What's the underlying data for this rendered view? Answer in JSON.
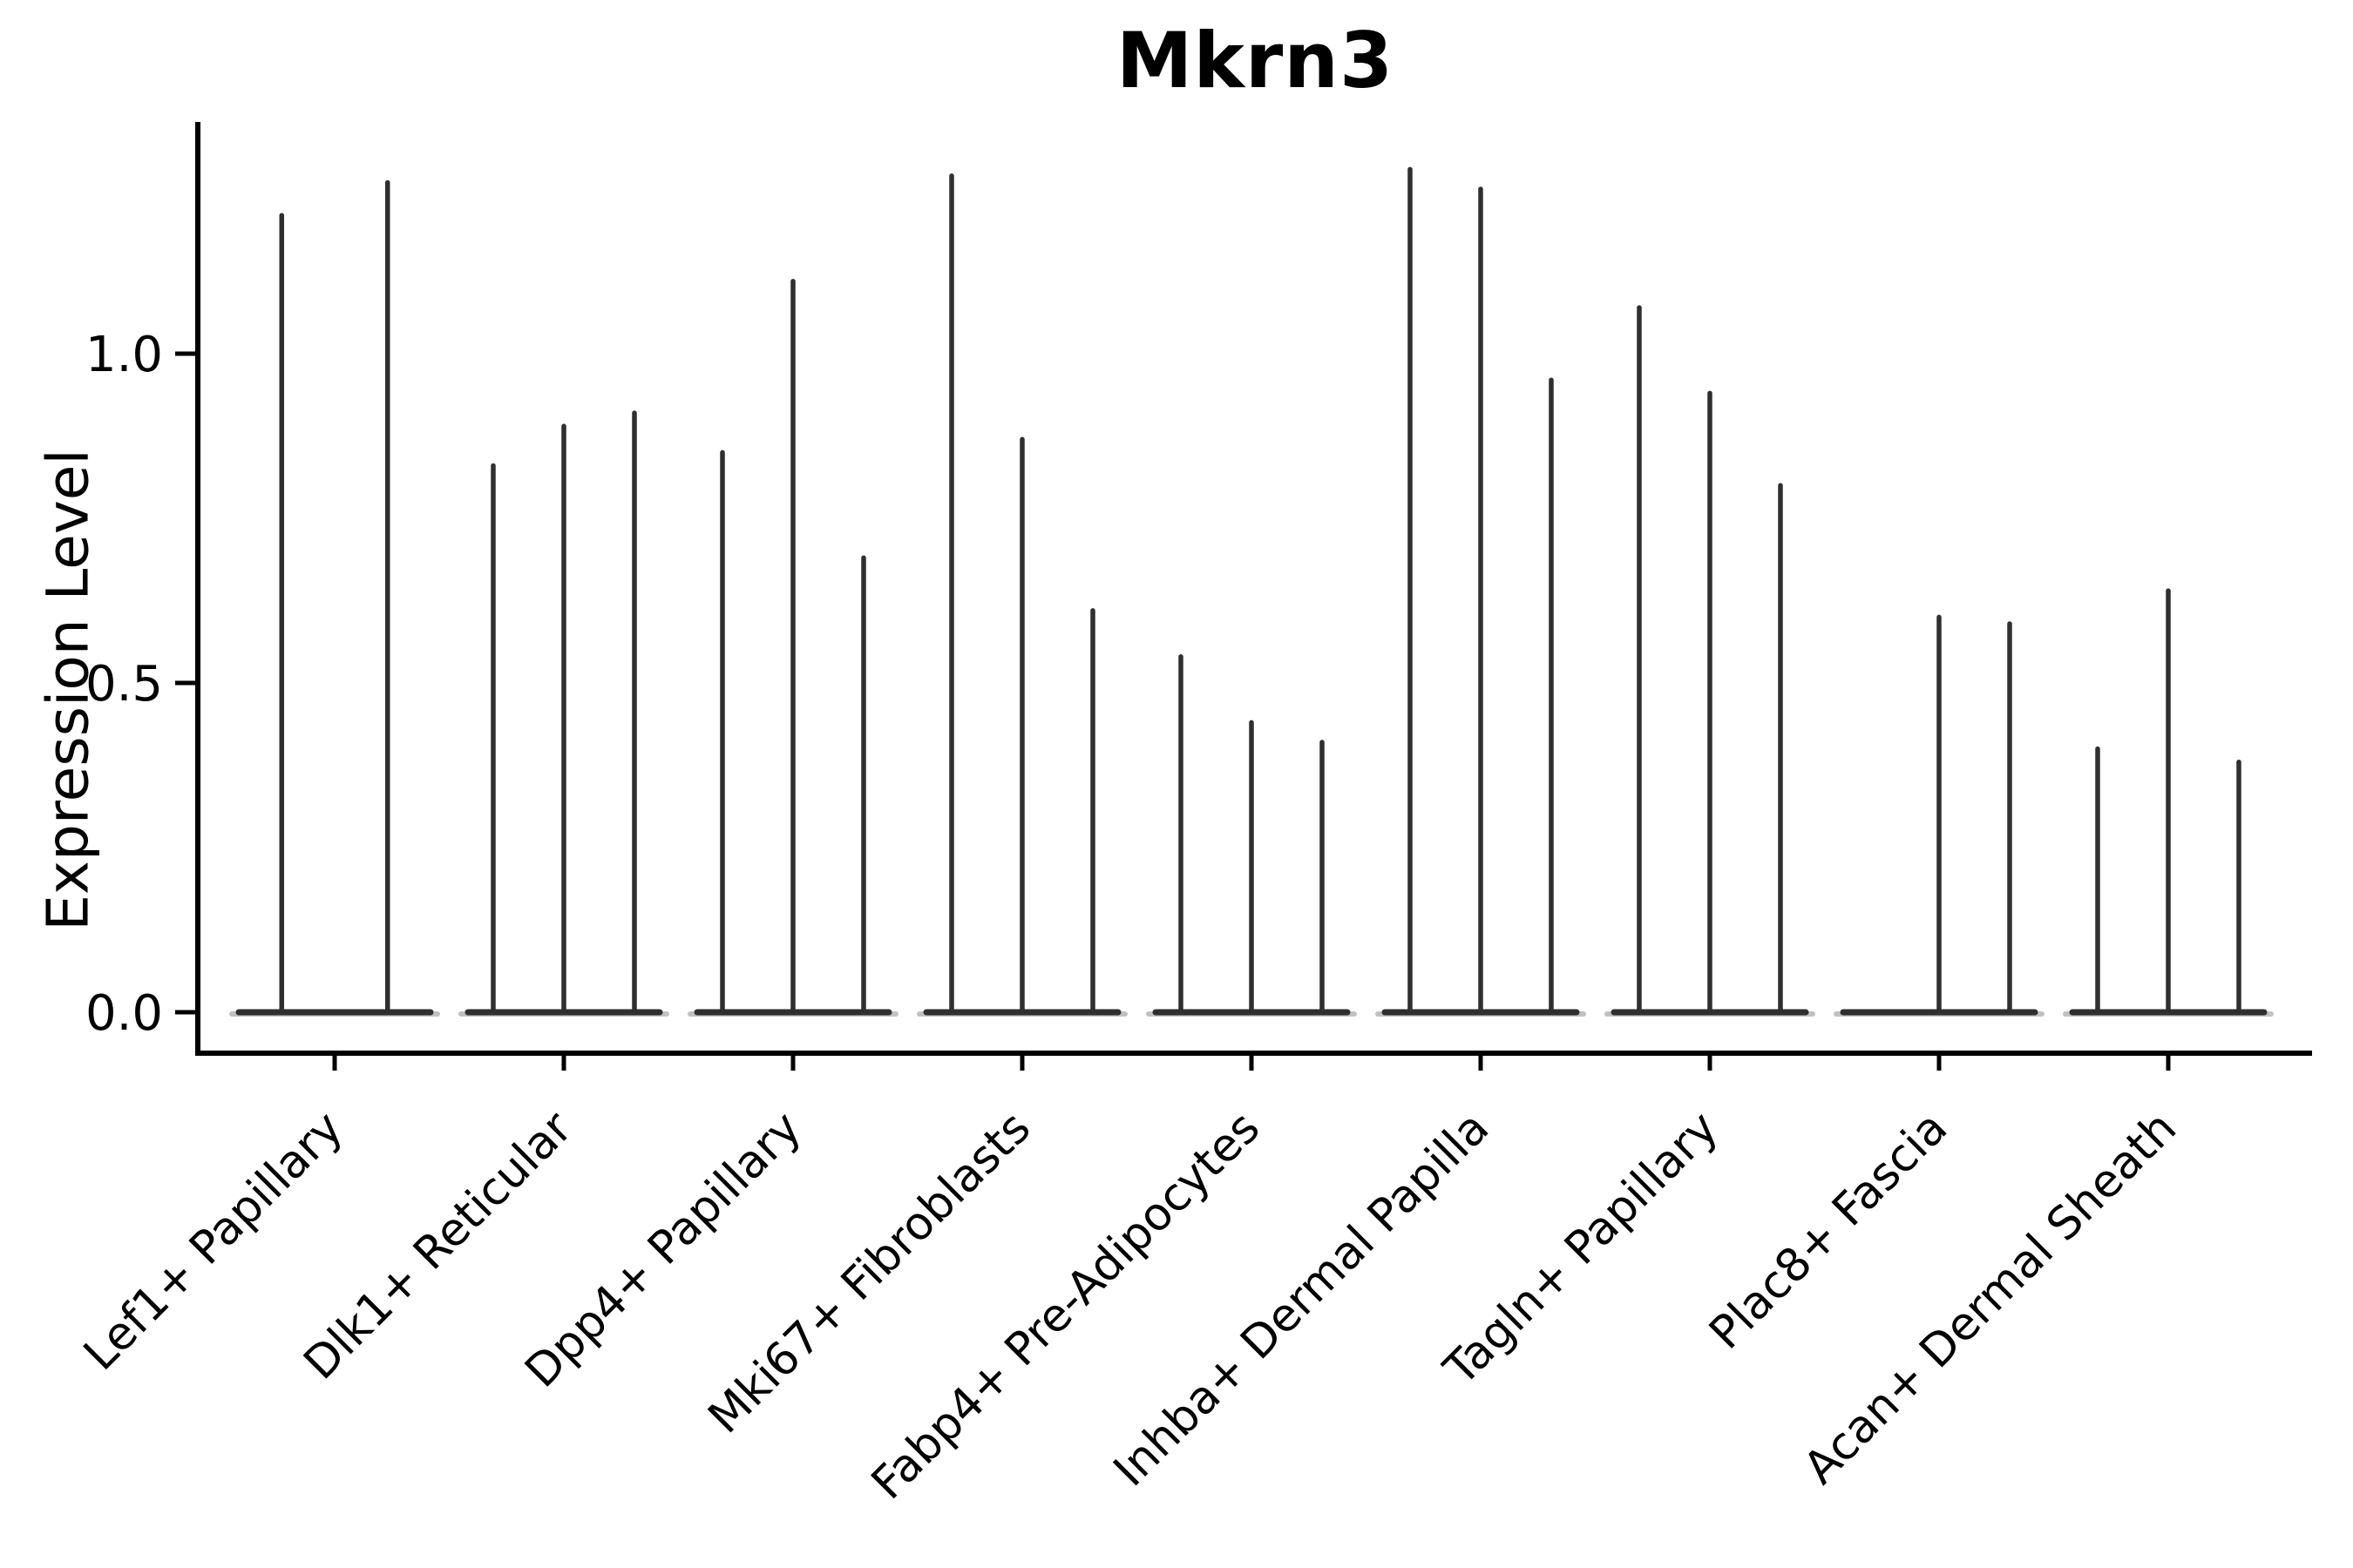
{
  "chart_data": {
    "type": "violin",
    "title": "Mkrn3",
    "ylabel": "Expression Level",
    "xlabel": "",
    "grid": false,
    "legend": "none",
    "background_color": "#ffffff",
    "violin_color": "#2f2f2f",
    "violin_end_fade_color": "#909090",
    "axis_color": "#000000",
    "ylim": [
      -0.06,
      1.35
    ],
    "ytick_labels": [
      "0.0",
      "0.5",
      "1.0"
    ],
    "ytick_values": [
      0.0,
      0.5,
      1.0
    ],
    "categories": [
      "Lef1+ Papillary",
      "Dlk1+ Reticular",
      "Dpp4+ Papillary",
      "Mki67+ Fibroblasts",
      "Fabp4+ Pre-Adipocytes",
      "Inhba+ Dermal Papilla",
      "Tagln+ Papillary",
      "Plac8+ Fascia",
      "Acan+ Dermal Sheath"
    ],
    "groups": [
      {
        "category": "Lef1+ Papillary",
        "violin_maxima": [
          1.21,
          1.26
        ]
      },
      {
        "category": "Dlk1+ Reticular",
        "violin_maxima": [
          0.83,
          0.89,
          0.91
        ]
      },
      {
        "category": "Dpp4+ Papillary",
        "violin_maxima": [
          0.85,
          1.11,
          0.69
        ]
      },
      {
        "category": "Mki67+ Fibroblasts",
        "violin_maxima": [
          1.27,
          0.87,
          0.61
        ]
      },
      {
        "category": "Fabp4+ Pre-Adipocytes",
        "violin_maxima": [
          0.54,
          0.44,
          0.41
        ]
      },
      {
        "category": "Inhba+ Dermal Papilla",
        "violin_maxima": [
          1.28,
          1.25,
          0.96
        ]
      },
      {
        "category": "Tagln+ Papillary",
        "violin_maxima": [
          1.07,
          0.94,
          0.8
        ]
      },
      {
        "category": "Plac8+ Fascia",
        "violin_maxima": [
          0.0,
          0.6,
          0.59
        ]
      },
      {
        "category": "Acan+ Dermal Sheath",
        "violin_maxima": [
          0.4,
          0.64,
          0.38
        ]
      }
    ]
  }
}
